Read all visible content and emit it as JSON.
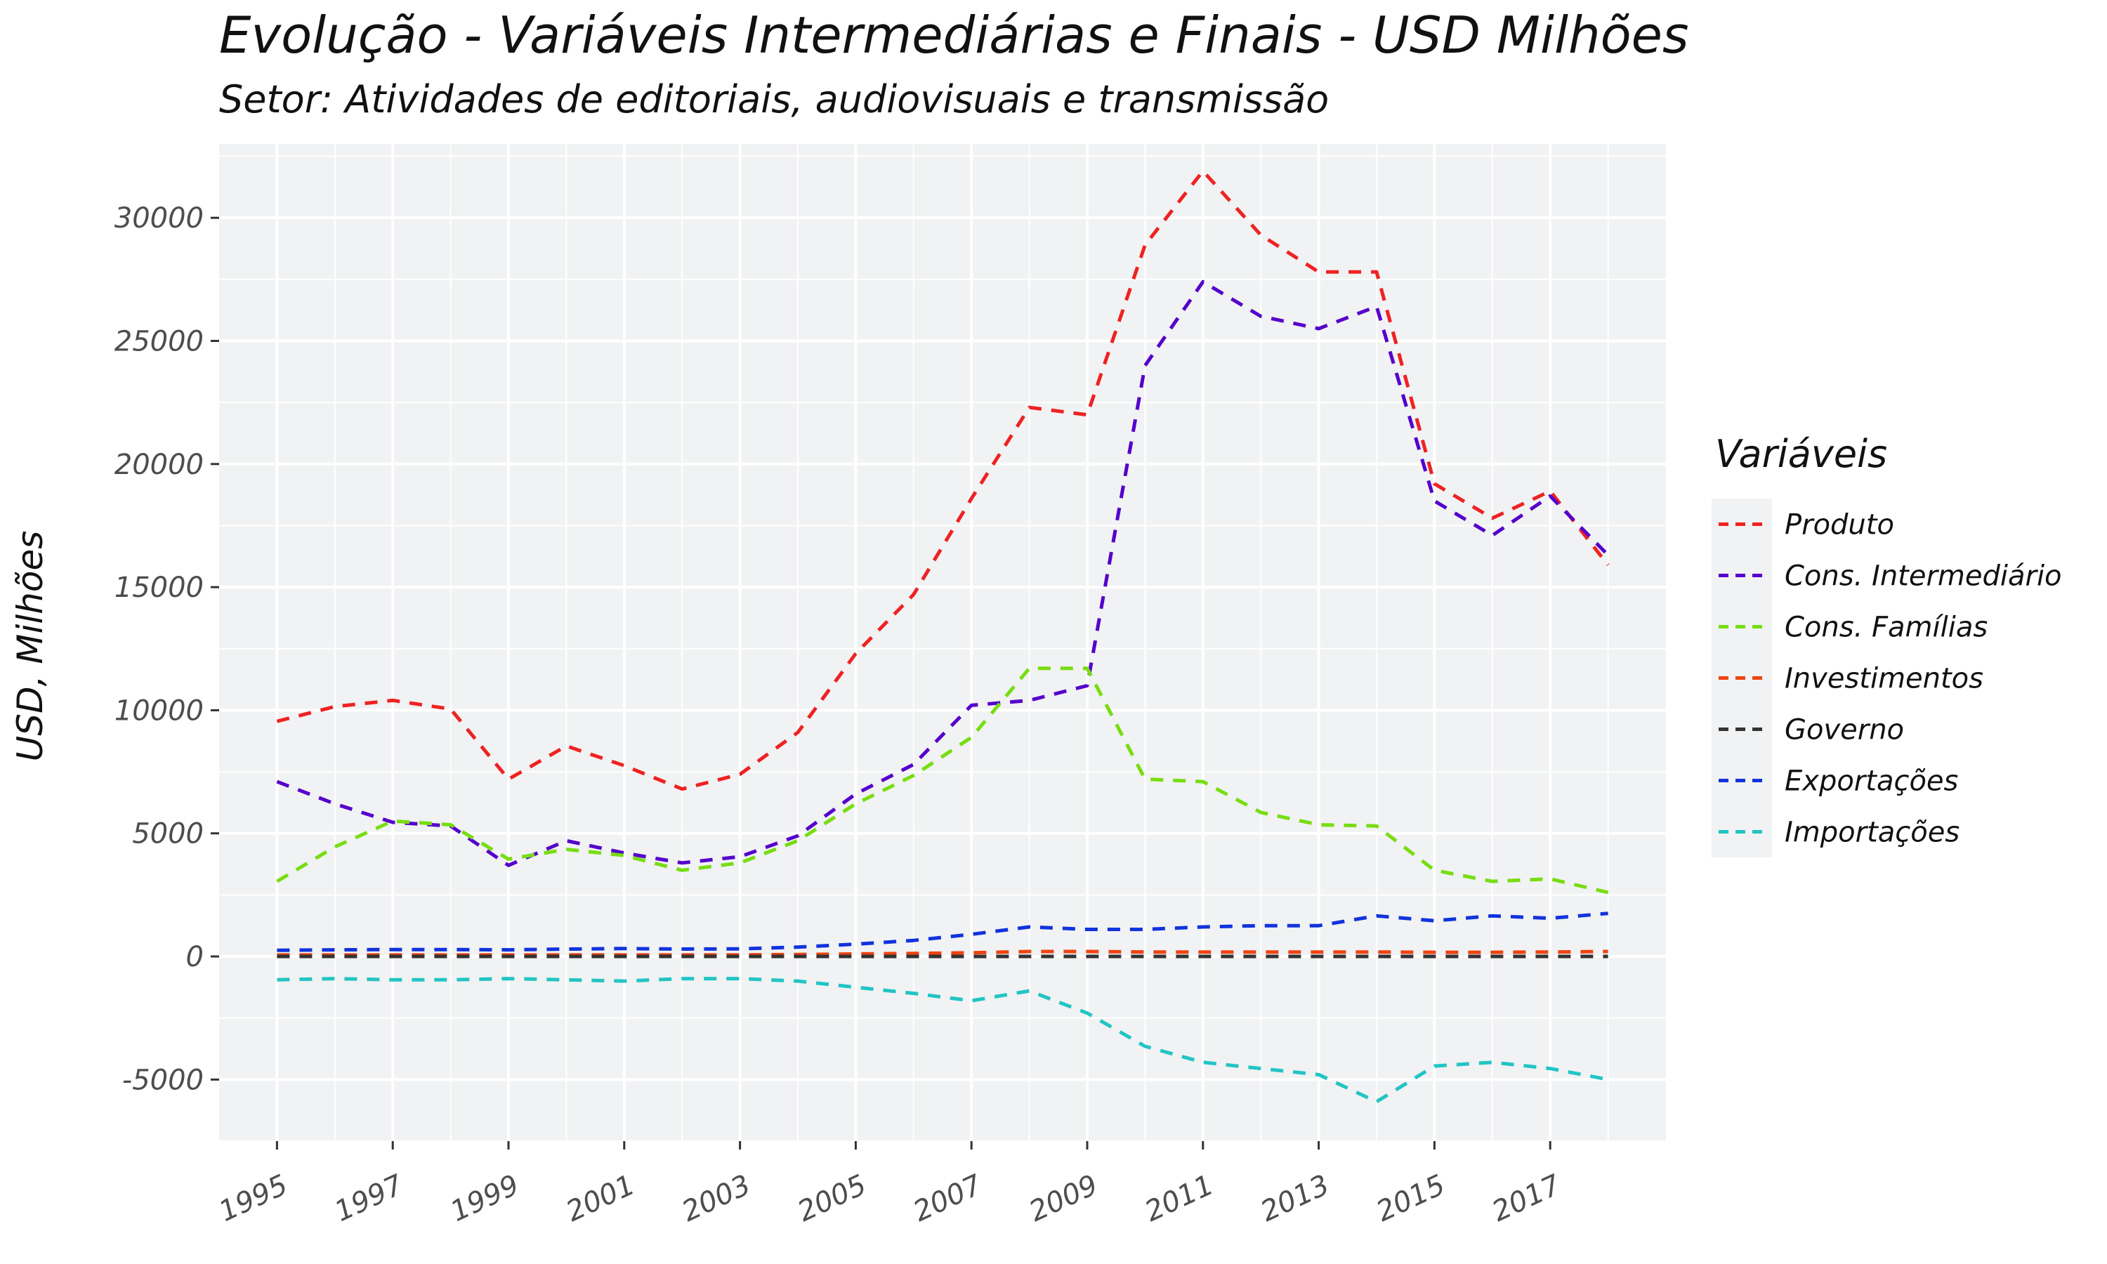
{
  "chart_data": {
    "type": "line",
    "title": "Evolução - Variáveis Intermediárias e Finais - USD Milhões",
    "subtitle": "Setor: Atividades de editoriais, audiovisuais e transmissão",
    "xlabel": "",
    "ylabel": "USD, Milhões",
    "legend_title": "Variáveis",
    "legend_position": "right",
    "grid": true,
    "line_style": "dashed",
    "xlim": [
      1994,
      2019
    ],
    "ylim": [
      -7500,
      33000
    ],
    "x_ticks": [
      1995,
      1997,
      1999,
      2001,
      2003,
      2005,
      2007,
      2009,
      2011,
      2013,
      2015,
      2017
    ],
    "x_tick_labels": [
      "1995",
      "1997",
      "1999",
      "2001",
      "2003",
      "2005",
      "2007",
      "2009",
      "2011",
      "2013",
      "2015",
      "2017"
    ],
    "y_ticks": [
      -5000,
      0,
      5000,
      10000,
      15000,
      20000,
      25000,
      30000
    ],
    "y_tick_labels": [
      "-5000",
      "0",
      "5000",
      "10000",
      "15000",
      "20000",
      "25000",
      "30000"
    ],
    "x": [
      1995,
      1996,
      1997,
      1998,
      1999,
      2000,
      2001,
      2002,
      2003,
      2004,
      2005,
      2006,
      2007,
      2008,
      2009,
      2010,
      2011,
      2012,
      2013,
      2014,
      2015,
      2016,
      2017,
      2018
    ],
    "series": [
      {
        "name": "Produto",
        "color": "#ee2222",
        "values": [
          9550,
          10150,
          10400,
          10050,
          7200,
          8550,
          7750,
          6800,
          7400,
          9100,
          12300,
          14700,
          18600,
          22300,
          22000,
          28900,
          31900,
          29300,
          27800,
          27800,
          19200,
          17800,
          18900,
          15900
        ]
      },
      {
        "name": "Cons. Intermediário",
        "color": "#5500cc",
        "values": [
          7100,
          6200,
          5450,
          5300,
          3700,
          4700,
          4200,
          3800,
          4050,
          4900,
          6600,
          7800,
          10200,
          10400,
          11000,
          24000,
          27400,
          26000,
          25500,
          26400,
          18500,
          17100,
          18700,
          16300
        ]
      },
      {
        "name": "Cons. Famílias",
        "color": "#77dd11",
        "values": [
          3050,
          4450,
          5500,
          5350,
          3950,
          4350,
          4100,
          3500,
          3800,
          4700,
          6200,
          7350,
          8900,
          11700,
          11700,
          7200,
          7100,
          5850,
          5350,
          5300,
          3500,
          3050,
          3150,
          2600
        ]
      },
      {
        "name": "Investimentos",
        "color": "#ee4411",
        "values": [
          60,
          60,
          60,
          60,
          60,
          60,
          60,
          60,
          60,
          80,
          100,
          120,
          150,
          200,
          200,
          180,
          180,
          180,
          180,
          180,
          170,
          170,
          180,
          200
        ]
      },
      {
        "name": "Governo",
        "color": "#333333",
        "values": [
          0,
          0,
          0,
          0,
          0,
          0,
          0,
          0,
          0,
          0,
          0,
          0,
          0,
          0,
          0,
          0,
          0,
          0,
          0,
          0,
          0,
          0,
          0,
          0
        ]
      },
      {
        "name": "Exportações",
        "color": "#1133dd",
        "values": [
          250,
          270,
          280,
          280,
          270,
          300,
          320,
          300,
          310,
          380,
          500,
          650,
          900,
          1200,
          1100,
          1100,
          1200,
          1250,
          1250,
          1650,
          1450,
          1650,
          1550,
          1750
        ]
      },
      {
        "name": "Importações",
        "color": "#22c4c4",
        "values": [
          -950,
          -900,
          -950,
          -950,
          -900,
          -950,
          -1000,
          -900,
          -900,
          -1000,
          -1250,
          -1500,
          -1800,
          -1400,
          -2300,
          -3650,
          -4300,
          -4550,
          -4800,
          -5900,
          -4450,
          -4300,
          -4550,
          -5000
        ]
      }
    ]
  }
}
